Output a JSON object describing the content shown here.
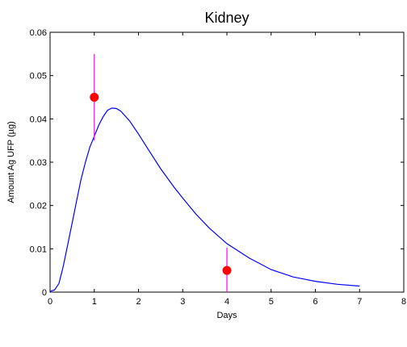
{
  "chart_data": {
    "type": "line",
    "title": "Kidney",
    "xlabel": "Days",
    "ylabel": "Amount Ag UFP (µg)",
    "xlim": [
      0,
      8
    ],
    "ylim": [
      0,
      0.06
    ],
    "x_ticks": [
      "0",
      "1",
      "2",
      "3",
      "4",
      "5",
      "6",
      "7",
      "8"
    ],
    "y_ticks": [
      "0",
      "0.01",
      "0.02",
      "0.03",
      "0.04",
      "0.05",
      "0.06"
    ],
    "grid": false,
    "series": [
      {
        "style": "line",
        "color": "#0000ff",
        "x": [
          0,
          0.1,
          0.2,
          0.3,
          0.4,
          0.5,
          0.6,
          0.7,
          0.8,
          0.9,
          1.0,
          1.1,
          1.2,
          1.3,
          1.4,
          1.5,
          1.6,
          1.8,
          2.0,
          2.2,
          2.5,
          2.8,
          3.0,
          3.3,
          3.6,
          4.0,
          4.5,
          5.0,
          5.5,
          6.0,
          6.5,
          7.0
        ],
        "y": [
          0.0002,
          0.0005,
          0.002,
          0.006,
          0.011,
          0.016,
          0.021,
          0.026,
          0.03,
          0.0335,
          0.036,
          0.0385,
          0.0405,
          0.042,
          0.0425,
          0.0424,
          0.0418,
          0.0395,
          0.0365,
          0.0333,
          0.0285,
          0.0243,
          0.0217,
          0.018,
          0.0148,
          0.0112,
          0.0079,
          0.0052,
          0.0035,
          0.0025,
          0.0018,
          0.0014
        ]
      }
    ],
    "observations": {
      "color": "#ff0000",
      "errorbar_color": "#ff00ff",
      "points": [
        {
          "x": 1,
          "y": 0.045,
          "low": 0.035,
          "high": 0.055
        },
        {
          "x": 4,
          "y": 0.005,
          "low": 0.0,
          "high": 0.0103
        }
      ]
    }
  }
}
